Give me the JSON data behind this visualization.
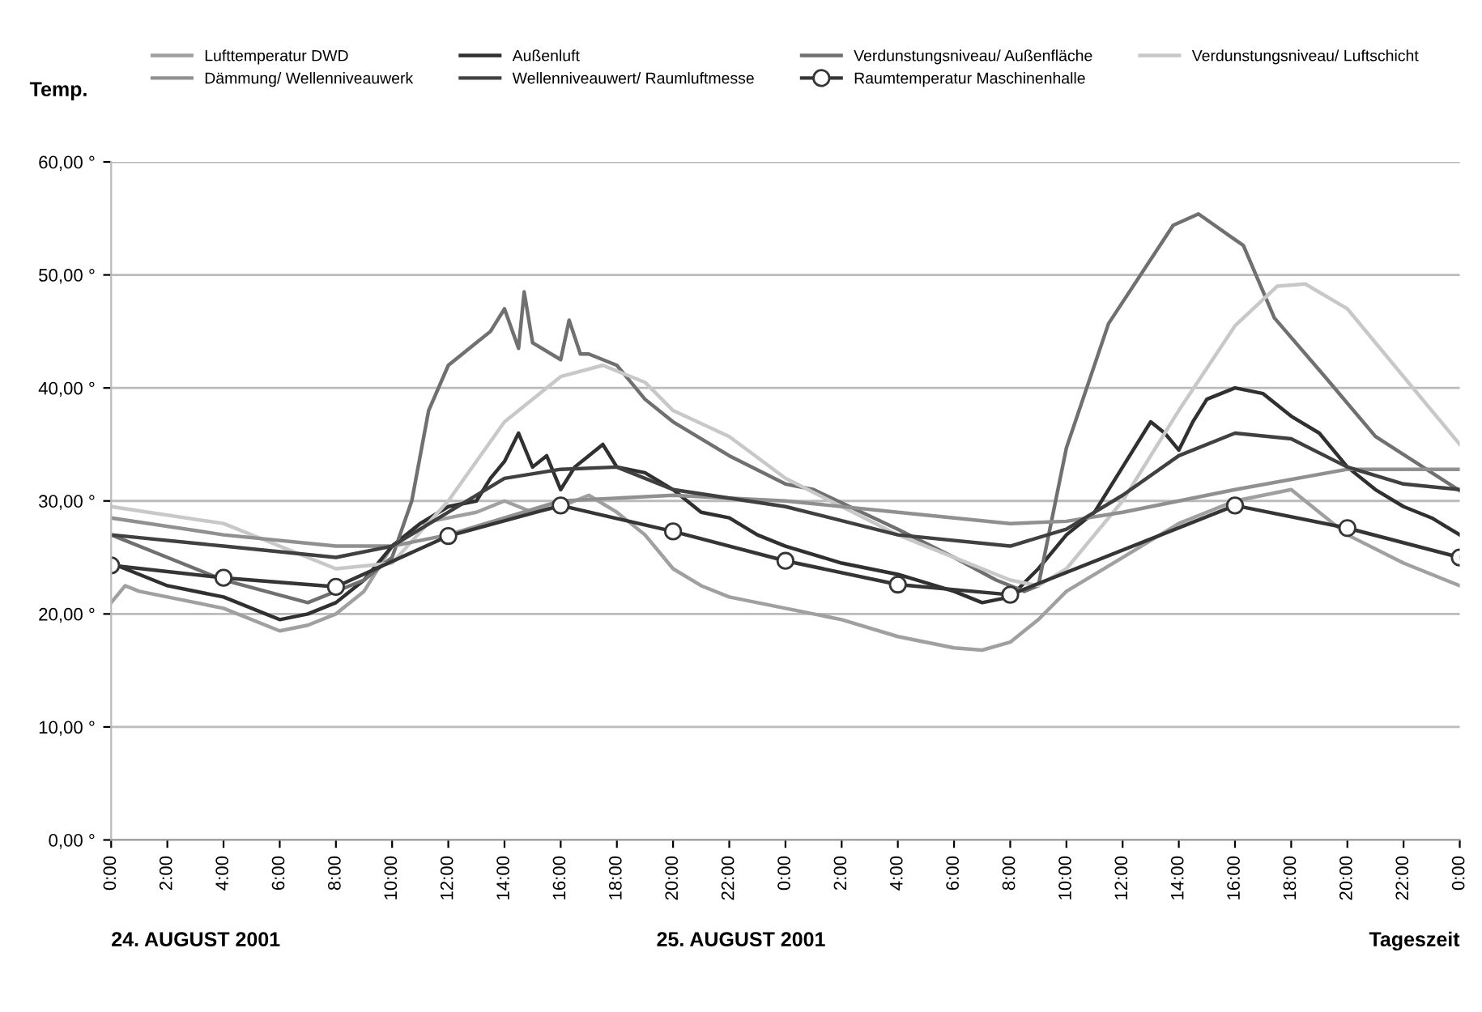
{
  "chart_data": {
    "type": "line",
    "ylabel": "Temp.",
    "xlabel": "Tageszeit",
    "annotations": [
      "24. AUGUST 2001",
      "25. AUGUST 2001"
    ],
    "xlim": [
      "2001-08-24T00:00",
      "2001-08-26T00:00"
    ],
    "ylim": [
      0,
      60
    ],
    "xticks": [
      {
        "value": "2001-08-24T00:00",
        "label": "0:00"
      },
      {
        "value": "2001-08-24T02:00",
        "label": "2:00"
      },
      {
        "value": "2001-08-24T04:00",
        "label": "4:00"
      },
      {
        "value": "2001-08-24T06:00",
        "label": "6:00"
      },
      {
        "value": "2001-08-24T08:00",
        "label": "8:00"
      },
      {
        "value": "2001-08-24T10:00",
        "label": "10:00"
      },
      {
        "value": "2001-08-24T12:00",
        "label": "12:00"
      },
      {
        "value": "2001-08-24T14:00",
        "label": "14:00"
      },
      {
        "value": "2001-08-24T16:00",
        "label": "16:00"
      },
      {
        "value": "2001-08-24T18:00",
        "label": "18:00"
      },
      {
        "value": "2001-08-24T20:00",
        "label": "20:00"
      },
      {
        "value": "2001-08-24T22:00",
        "label": "22:00"
      },
      {
        "value": "2001-08-25T00:00",
        "label": "0:00"
      },
      {
        "value": "2001-08-25T02:00",
        "label": "2:00"
      },
      {
        "value": "2001-08-25T04:00",
        "label": "4:00"
      },
      {
        "value": "2001-08-25T06:00",
        "label": "6:00"
      },
      {
        "value": "2001-08-25T08:00",
        "label": "8:00"
      },
      {
        "value": "2001-08-25T10:00",
        "label": "10:00"
      },
      {
        "value": "2001-08-25T12:00",
        "label": "12:00"
      },
      {
        "value": "2001-08-25T14:00",
        "label": "14:00"
      },
      {
        "value": "2001-08-25T16:00",
        "label": "16:00"
      },
      {
        "value": "2001-08-25T18:00",
        "label": "18:00"
      },
      {
        "value": "2001-08-25T20:00",
        "label": "20:00"
      },
      {
        "value": "2001-08-25T22:00",
        "label": "22:00"
      },
      {
        "value": "2001-08-26T00:00",
        "label": "0:00"
      }
    ],
    "yticks": [
      {
        "value": 0,
        "label": "0,00 °"
      },
      {
        "value": 10,
        "label": "10,00 °"
      },
      {
        "value": 20,
        "label": "20,00 °"
      },
      {
        "value": 30,
        "label": "30,00 °"
      },
      {
        "value": 40,
        "label": "40,00 °"
      },
      {
        "value": 50,
        "label": "50,00 °"
      },
      {
        "value": 60,
        "label": "60,00 °"
      }
    ],
    "grid": "y",
    "legend": "top",
    "line_style": "solid",
    "series": [
      {
        "name": "Lufttemperatur DWD",
        "color": "#a0a0a0",
        "marker": "none",
        "x": [
          "2001-08-24T00:00",
          "2001-08-24T00:30",
          "2001-08-24T01:00",
          "2001-08-24T04:00",
          "2001-08-24T06:00",
          "2001-08-24T07:00",
          "2001-08-24T08:00",
          "2001-08-24T09:00",
          "2001-08-24T10:00",
          "2001-08-24T11:00",
          "2001-08-24T12:00",
          "2001-08-24T13:00",
          "2001-08-24T14:00",
          "2001-08-24T15:00",
          "2001-08-24T16:00",
          "2001-08-24T17:00",
          "2001-08-24T18:00",
          "2001-08-24T19:00",
          "2001-08-24T20:00",
          "2001-08-24T21:00",
          "2001-08-24T22:00",
          "2001-08-25T00:00",
          "2001-08-25T02:00",
          "2001-08-25T04:00",
          "2001-08-25T06:00",
          "2001-08-25T07:00",
          "2001-08-25T08:00",
          "2001-08-25T09:00",
          "2001-08-25T10:00",
          "2001-08-25T12:00",
          "2001-08-25T14:00",
          "2001-08-25T16:00",
          "2001-08-25T18:00",
          "2001-08-25T19:00",
          "2001-08-25T20:00",
          "2001-08-25T22:00",
          "2001-08-26T00:00"
        ],
        "values": [
          21,
          22.5,
          22,
          20.5,
          18.5,
          19,
          20,
          22,
          26,
          28,
          28.5,
          29,
          30,
          29,
          29.5,
          30.5,
          29,
          27,
          24,
          22.5,
          21.5,
          20.5,
          19.5,
          18,
          17,
          16.8,
          17.5,
          19.5,
          22,
          25,
          28,
          30,
          31,
          29,
          27,
          24.5,
          22.5
        ]
      },
      {
        "name": "Außenluft",
        "color": "#303030",
        "marker": "none",
        "x": [
          "2001-08-24T00:00",
          "2001-08-24T02:00",
          "2001-08-24T04:00",
          "2001-08-24T06:00",
          "2001-08-24T07:00",
          "2001-08-24T08:00",
          "2001-08-24T09:00",
          "2001-08-24T10:00",
          "2001-08-24T11:00",
          "2001-08-24T12:00",
          "2001-08-24T13:00",
          "2001-08-24T13:30",
          "2001-08-24T14:00",
          "2001-08-24T14:30",
          "2001-08-24T15:00",
          "2001-08-24T15:30",
          "2001-08-24T16:00",
          "2001-08-24T16:30",
          "2001-08-24T17:00",
          "2001-08-24T17:30",
          "2001-08-24T18:00",
          "2001-08-24T19:00",
          "2001-08-24T20:00",
          "2001-08-24T21:00",
          "2001-08-24T22:00",
          "2001-08-24T23:00",
          "2001-08-25T00:00",
          "2001-08-25T02:00",
          "2001-08-25T04:00",
          "2001-08-25T06:00",
          "2001-08-25T07:00",
          "2001-08-25T08:00",
          "2001-08-25T09:00",
          "2001-08-25T10:00",
          "2001-08-25T11:00",
          "2001-08-25T12:00",
          "2001-08-25T13:00",
          "2001-08-25T13:30",
          "2001-08-25T14:00",
          "2001-08-25T14:30",
          "2001-08-25T15:00",
          "2001-08-25T16:00",
          "2001-08-25T17:00",
          "2001-08-25T18:00",
          "2001-08-25T19:00",
          "2001-08-25T20:00",
          "2001-08-25T21:00",
          "2001-08-25T22:00",
          "2001-08-25T23:00",
          "2001-08-26T00:00"
        ],
        "values": [
          24.5,
          22.5,
          21.5,
          19.5,
          20,
          21,
          23,
          26,
          28,
          29.5,
          30,
          32,
          33.5,
          36,
          33,
          34,
          31,
          33,
          34,
          35,
          33,
          32.5,
          31,
          29,
          28.5,
          27,
          26,
          24.5,
          23.5,
          22,
          21,
          21.5,
          24,
          27,
          29,
          33,
          37,
          36,
          34.5,
          37,
          39,
          40,
          39.5,
          37.5,
          36,
          33,
          31,
          29.5,
          28.5,
          27
        ]
      },
      {
        "name": "Verdunstungsniveau/ Außenfläche",
        "color": "#707070",
        "marker": "none",
        "x": [
          "2001-08-24T00:00",
          "2001-08-24T02:00",
          "2001-08-24T04:00",
          "2001-08-24T07:00",
          "2001-08-24T09:00",
          "2001-08-24T10:00",
          "2001-08-24T10:42",
          "2001-08-24T11:18",
          "2001-08-24T12:00",
          "2001-08-24T13:00",
          "2001-08-24T13:30",
          "2001-08-24T14:00",
          "2001-08-24T14:30",
          "2001-08-24T14:42",
          "2001-08-24T15:00",
          "2001-08-24T16:00",
          "2001-08-24T16:18",
          "2001-08-24T16:42",
          "2001-08-24T17:00",
          "2001-08-24T18:00",
          "2001-08-24T19:00",
          "2001-08-24T20:00",
          "2001-08-24T22:00",
          "2001-08-25T00:00",
          "2001-08-25T01:00",
          "2001-08-25T04:00",
          "2001-08-25T06:00",
          "2001-08-25T07:30",
          "2001-08-25T08:30",
          "2001-08-25T09:00",
          "2001-08-25T10:00",
          "2001-08-25T11:30",
          "2001-08-25T13:48",
          "2001-08-25T14:42",
          "2001-08-25T16:18",
          "2001-08-25T17:24",
          "2001-08-25T19:12",
          "2001-08-25T21:00",
          "2001-08-26T00:00"
        ],
        "values": [
          27,
          25,
          23,
          21,
          23,
          25,
          30,
          38,
          42,
          44,
          45,
          47,
          43.5,
          48.5,
          44,
          42.5,
          46,
          43,
          43,
          42,
          39,
          37,
          34,
          31.5,
          31,
          27.5,
          25,
          23,
          22,
          22.5,
          34.7,
          45.7,
          54.4,
          55.4,
          52.6,
          46.2,
          41,
          35.7,
          30.9
        ]
      },
      {
        "name": "Verdunstungsniveau/ Luftschicht",
        "color": "#c8c8c8",
        "marker": "none",
        "x": [
          "2001-08-24T00:00",
          "2001-08-24T04:00",
          "2001-08-24T08:00",
          "2001-08-24T10:00",
          "2001-08-24T12:00",
          "2001-08-24T14:00",
          "2001-08-24T16:00",
          "2001-08-24T17:30",
          "2001-08-24T19:00",
          "2001-08-24T20:00",
          "2001-08-24T22:00",
          "2001-08-25T00:00",
          "2001-08-25T04:00",
          "2001-08-25T08:00",
          "2001-08-25T09:00",
          "2001-08-25T10:00",
          "2001-08-25T12:00",
          "2001-08-25T14:00",
          "2001-08-25T16:00",
          "2001-08-25T17:30",
          "2001-08-25T18:30",
          "2001-08-25T20:00",
          "2001-08-25T22:00",
          "2001-08-26T00:00"
        ],
        "values": [
          29.5,
          28,
          24,
          24.5,
          30,
          37,
          41,
          42,
          40.5,
          38,
          35.7,
          32,
          27,
          23,
          22.5,
          24,
          30,
          38,
          45.5,
          49,
          49.2,
          47,
          41,
          35
        ]
      },
      {
        "name": "Dämmung/ Wellenniveauwerk",
        "color": "#909090",
        "marker": "none",
        "x": [
          "2001-08-24T00:00",
          "2001-08-24T04:00",
          "2001-08-24T08:00",
          "2001-08-24T10:00",
          "2001-08-24T12:00",
          "2001-08-24T16:00",
          "2001-08-24T20:00",
          "2001-08-25T00:00",
          "2001-08-25T04:00",
          "2001-08-25T08:00",
          "2001-08-25T10:00",
          "2001-08-25T12:00",
          "2001-08-25T16:00",
          "2001-08-25T20:00",
          "2001-08-26T00:00"
        ],
        "values": [
          28.5,
          27,
          26,
          26,
          27,
          30,
          30.5,
          30,
          29,
          28,
          28.2,
          29,
          31,
          32.8,
          32.8
        ]
      },
      {
        "name": "Wellenniveauwert/ Raumluftmesse",
        "color": "#404040",
        "marker": "none",
        "x": [
          "2001-08-24T00:00",
          "2001-08-24T04:00",
          "2001-08-24T08:00",
          "2001-08-24T10:00",
          "2001-08-24T12:00",
          "2001-08-24T14:00",
          "2001-08-24T16:00",
          "2001-08-24T18:00",
          "2001-08-24T20:00",
          "2001-08-25T00:00",
          "2001-08-25T04:00",
          "2001-08-25T08:00",
          "2001-08-25T10:00",
          "2001-08-25T12:00",
          "2001-08-25T14:00",
          "2001-08-25T16:00",
          "2001-08-25T18:00",
          "2001-08-25T20:00",
          "2001-08-25T22:00",
          "2001-08-26T00:00"
        ],
        "values": [
          27,
          26,
          25,
          26,
          29,
          32,
          32.8,
          33,
          31,
          29.5,
          27,
          26,
          27.5,
          30.5,
          34,
          36,
          35.5,
          33,
          31.5,
          31
        ]
      },
      {
        "name": "Raumtemperatur Maschinenhalle",
        "color": "#353535",
        "marker": "circle",
        "x": [
          "2001-08-24T00:00",
          "2001-08-24T04:00",
          "2001-08-24T08:00",
          "2001-08-24T12:00",
          "2001-08-24T16:00",
          "2001-08-24T20:00",
          "2001-08-25T00:00",
          "2001-08-25T04:00",
          "2001-08-25T08:00",
          "2001-08-25T16:00",
          "2001-08-25T20:00",
          "2001-08-26T00:00"
        ],
        "values": [
          24.3,
          23.2,
          22.4,
          26.9,
          29.6,
          27.3,
          24.7,
          22.6,
          21.7,
          29.6,
          27.6,
          25
        ]
      }
    ]
  }
}
